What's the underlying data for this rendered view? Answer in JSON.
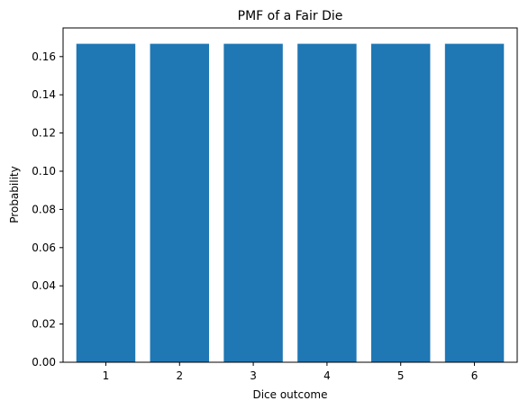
{
  "chart_data": {
    "type": "bar",
    "title": "PMF of a Fair Die",
    "xlabel": "Dice outcome",
    "ylabel": "Probability",
    "categories": [
      "1",
      "2",
      "3",
      "4",
      "5",
      "6"
    ],
    "values": [
      0.1667,
      0.1667,
      0.1667,
      0.1667,
      0.1667,
      0.1667
    ],
    "ylim": [
      0,
      0.175
    ],
    "yticks": [
      0.0,
      0.02,
      0.04,
      0.06,
      0.08,
      0.1,
      0.12,
      0.14,
      0.16
    ],
    "ytick_labels": [
      "0.00",
      "0.02",
      "0.04",
      "0.06",
      "0.08",
      "0.10",
      "0.12",
      "0.14",
      "0.16"
    ],
    "bar_color": "#1f77b4",
    "grid": false,
    "legend": "none"
  }
}
